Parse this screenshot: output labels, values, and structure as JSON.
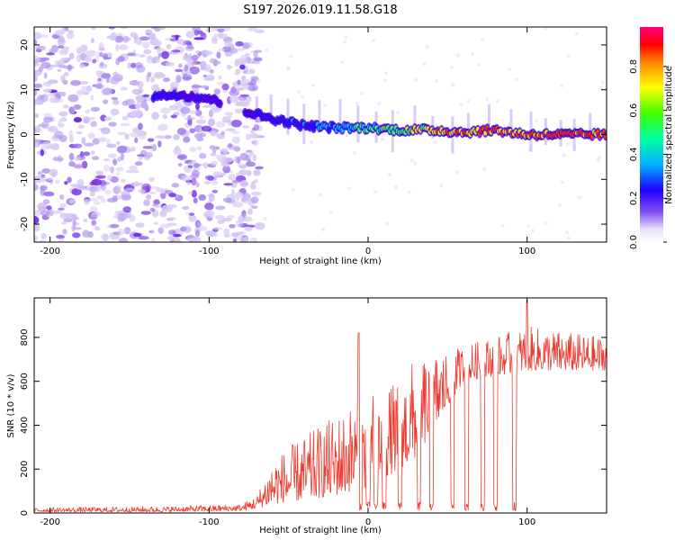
{
  "title": "S197.2026.019.11.58.G18",
  "chart_data": [
    {
      "type": "heatmap",
      "name": "spectrogram",
      "xlabel": "Height of straight line (km)",
      "ylabel": "Frequency (Hz)",
      "xlim": [
        -210,
        150
      ],
      "ylim": [
        -24,
        24
      ],
      "xticks": [
        -200,
        -100,
        0,
        100
      ],
      "yticks": [
        -20,
        -10,
        0,
        10,
        20
      ],
      "colorbar": {
        "label": "Normalized spectral amplitude",
        "range": [
          0,
          0.98
        ],
        "ticks": [
          "0.0",
          "0.2",
          "0.4",
          "0.6",
          "0.8"
        ],
        "colors": [
          "#ffffff",
          "#b09ae8",
          "#5a00e0",
          "#0000ff",
          "#00c8ff",
          "#00ff00",
          "#ffff00",
          "#ff8000",
          "#ff0000",
          "#ff0080"
        ]
      },
      "ridge": [
        {
          "x": -135,
          "f": 8.5,
          "a": 0.35
        },
        {
          "x": -120,
          "f": 9,
          "a": 0.3
        },
        {
          "x": -100,
          "f": 8,
          "a": 0.25
        },
        {
          "x": -75,
          "f": 5,
          "a": 0.3
        },
        {
          "x": -60,
          "f": 3.5,
          "a": 0.35
        },
        {
          "x": -40,
          "f": 2,
          "a": 0.45
        },
        {
          "x": -20,
          "f": 1.5,
          "a": 0.5
        },
        {
          "x": 0,
          "f": 1.5,
          "a": 0.6
        },
        {
          "x": 20,
          "f": 1,
          "a": 0.7
        },
        {
          "x": 40,
          "f": 1,
          "a": 0.8
        },
        {
          "x": 60,
          "f": 0.5,
          "a": 0.8
        },
        {
          "x": 80,
          "f": 1,
          "a": 0.85
        },
        {
          "x": 100,
          "f": 0,
          "a": 0.8
        },
        {
          "x": 120,
          "f": 0,
          "a": 0.9
        },
        {
          "x": 150,
          "f": 0,
          "a": 0.85
        }
      ]
    },
    {
      "type": "line",
      "name": "snr",
      "xlabel": "Height of straight line (km)",
      "ylabel": "SNR (10 * v/v)",
      "xlim": [
        -210,
        150
      ],
      "ylim": [
        0,
        980
      ],
      "xticks": [
        -200,
        -100,
        0,
        100
      ],
      "yticks": [
        0,
        200,
        400,
        600,
        800
      ],
      "color": "#ee3b30",
      "envelope": [
        {
          "x": -210,
          "lo": 5,
          "hi": 25
        },
        {
          "x": -130,
          "lo": 5,
          "hi": 30
        },
        {
          "x": -80,
          "lo": 10,
          "hi": 40
        },
        {
          "x": -70,
          "lo": 20,
          "hi": 80
        },
        {
          "x": -60,
          "lo": 40,
          "hi": 250
        },
        {
          "x": -40,
          "lo": 60,
          "hi": 350
        },
        {
          "x": -20,
          "lo": 80,
          "hi": 450
        },
        {
          "x": 0,
          "lo": 120,
          "hi": 550
        },
        {
          "x": 20,
          "lo": 200,
          "hi": 600
        },
        {
          "x": 30,
          "lo": 250,
          "hi": 720
        },
        {
          "x": 60,
          "lo": 600,
          "hi": 760
        },
        {
          "x": 100,
          "lo": 650,
          "hi": 850
        },
        {
          "x": 150,
          "lo": 650,
          "hi": 800
        }
      ],
      "dropouts": [
        -5,
        0,
        5,
        10,
        20,
        32,
        40,
        53,
        62,
        72,
        80,
        92
      ],
      "peaks": [
        {
          "x": -6,
          "y": 820
        },
        {
          "x": 100,
          "y": 970
        }
      ]
    }
  ]
}
